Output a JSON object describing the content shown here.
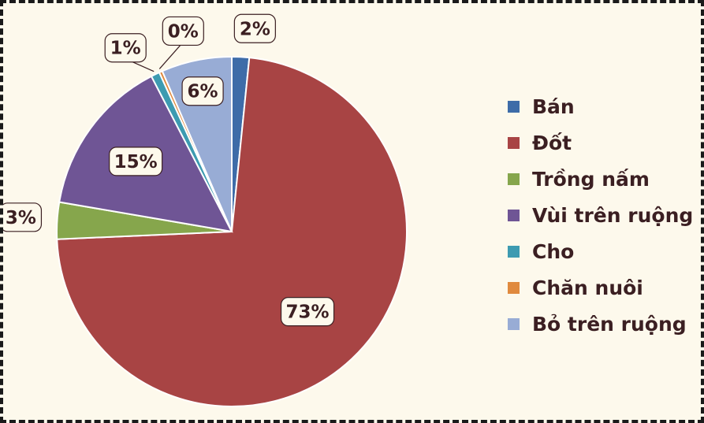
{
  "chart_data": {
    "type": "pie",
    "categories": [
      "Bán",
      "Đốt",
      "Trồng nấm",
      "Vùi trên ruộng",
      "Cho",
      "Chăn nuôi",
      "Bỏ trên ruộng"
    ],
    "values": [
      1.6,
      72.7,
      3.4,
      14.7,
      0.8,
      0.3,
      6.5
    ],
    "data_labels": [
      "2%",
      "73%",
      "3%",
      "15%",
      "1%",
      "0%",
      "6%"
    ],
    "colors": [
      "#3e6ca8",
      "#a84444",
      "#86a64c",
      "#6f5595",
      "#3d9bb1",
      "#e08a3e",
      "#98acd5"
    ],
    "legend_position": "right"
  }
}
